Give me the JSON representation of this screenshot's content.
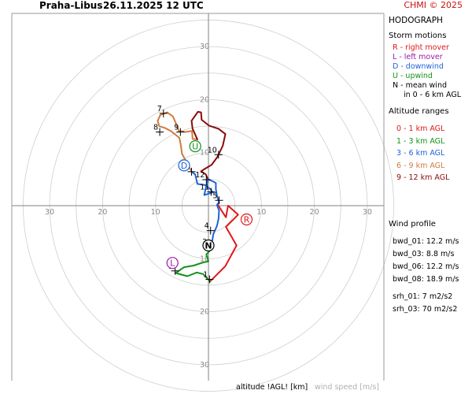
{
  "header": {
    "station": "Praha-Libus",
    "datetime": "26.11.2025 12 UTC",
    "copyright": "CHMI © 2025"
  },
  "legend": {
    "title": "HODOGRAPH",
    "storm_motions_title": "Storm motions",
    "storm_motions": [
      {
        "text": "R - right mover",
        "color": "#e01818"
      },
      {
        "text": "L - left mover",
        "color": "#9a1aa8"
      },
      {
        "text": "D - downwind",
        "color": "#1f63d8"
      },
      {
        "text": "U - upwind",
        "color": "#13911b"
      },
      {
        "text": "N - mean wind",
        "color": "#000000"
      },
      {
        "text": "in 0 - 6 km AGL",
        "color": "#000000"
      }
    ],
    "altitude_title": "Altitude ranges",
    "altitude_ranges": [
      {
        "text": "0 - 1 km AGL",
        "color": "#e01818"
      },
      {
        "text": "1 - 3 km AGL",
        "color": "#13911b"
      },
      {
        "text": "3 - 6 km AGL",
        "color": "#1f63d8"
      },
      {
        "text": "6 - 9 km AGL",
        "color": "#d07b3e"
      },
      {
        "text": "9 - 12 km AGL",
        "color": "#8b0a0a"
      }
    ],
    "wind_profile_title": "Wind profile",
    "wind_profile": [
      "bwd_01: 12.2 m/s",
      "bwd_03: 8.8 m/s",
      "bwd_06: 12.2 m/s",
      "bwd_08: 18.9 m/s",
      "srh_01: 7 m2/s2",
      "srh_03: 70 m2/s2"
    ]
  },
  "footer": {
    "altitude_label": "altitude !AGL! [km]",
    "speed_label": "wind speed [m/s]"
  },
  "chart_data": {
    "type": "line",
    "title": "HODOGRAPH",
    "units": "m/s",
    "axis_range": [
      -36,
      36
    ],
    "rings": [
      5,
      10,
      15,
      20,
      25,
      30,
      35
    ],
    "tick_labels": [
      "10",
      "20",
      "30"
    ],
    "grid": true,
    "series": [
      {
        "name": "0 - 1 km AGL",
        "color": "#e01818",
        "points": [
          [
            0.3,
            -14.3
          ],
          [
            3.2,
            -11.4
          ],
          [
            5.3,
            -7.5
          ],
          [
            3.3,
            -4.0
          ],
          [
            5.6,
            -1.7
          ],
          [
            3.7,
            0.0
          ],
          [
            3.3,
            -2.2
          ],
          [
            1.7,
            0.3
          ],
          [
            2.0,
            0.6
          ]
        ]
      },
      {
        "name": "1 - 3 km AGL",
        "color": "#13911b",
        "points": [
          [
            0.3,
            -14.3
          ],
          [
            -1.0,
            -12.9
          ],
          [
            -2.2,
            -12.6
          ],
          [
            -4.0,
            -13.3
          ],
          [
            -6.2,
            -12.7
          ],
          [
            -4.6,
            -11.6
          ],
          [
            -2.8,
            -11.3
          ],
          [
            -1.0,
            -10.7
          ],
          [
            0.0,
            -10.5
          ],
          [
            -0.4,
            -9.2
          ],
          [
            0.4,
            -8.3
          ],
          [
            0.0,
            -8.0
          ]
        ]
      },
      {
        "name": "3 - 6 km AGL",
        "color": "#1f63d8",
        "points": [
          [
            0.0,
            -8.0
          ],
          [
            0.7,
            -6.8
          ],
          [
            0.9,
            -5.4
          ],
          [
            1.6,
            -3.8
          ],
          [
            1.9,
            -2.5
          ],
          [
            2.0,
            -0.9
          ],
          [
            1.6,
            0.1
          ],
          [
            2.0,
            0.6
          ],
          [
            1.6,
            1.9
          ],
          [
            1.4,
            3.1
          ],
          [
            1.4,
            4.3
          ],
          [
            0.6,
            4.7
          ],
          [
            -0.1,
            5.0
          ],
          [
            -0.6,
            2.9
          ],
          [
            -0.8,
            2.0
          ],
          [
            0.8,
            2.5
          ],
          [
            0.4,
            3.1
          ],
          [
            -0.7,
            3.9
          ],
          [
            -2.1,
            4.1
          ],
          [
            -2.5,
            5.9
          ],
          [
            -3.2,
            6.4
          ]
        ]
      },
      {
        "name": "6 - 9 km AGL",
        "color": "#d07b3e",
        "points": [
          [
            -3.2,
            6.4
          ],
          [
            -4.2,
            8.3
          ],
          [
            -5.0,
            9.8
          ],
          [
            -5.2,
            11.3
          ],
          [
            -5.5,
            12.8
          ],
          [
            -7.0,
            14.0
          ],
          [
            -8.1,
            14.6
          ],
          [
            -9.3,
            15.0
          ],
          [
            -9.6,
            16.0
          ],
          [
            -9.1,
            17.1
          ],
          [
            -7.8,
            17.6
          ],
          [
            -6.7,
            16.8
          ],
          [
            -6.1,
            15.4
          ],
          [
            -5.6,
            14.1
          ],
          [
            -4.3,
            13.9
          ],
          [
            -3.1,
            14.1
          ],
          [
            -3.0,
            12.6
          ],
          [
            -2.1,
            12.5
          ]
        ]
      },
      {
        "name": "9 - 12 km AGL",
        "color": "#8b0a0a",
        "points": [
          [
            -2.1,
            12.5
          ],
          [
            -3.0,
            14.5
          ],
          [
            -3.2,
            16.0
          ],
          [
            -2.0,
            17.7
          ],
          [
            -1.4,
            17.6
          ],
          [
            -1.3,
            16.2
          ],
          [
            0.1,
            15.1
          ],
          [
            1.9,
            14.5
          ],
          [
            3.2,
            13.5
          ],
          [
            2.7,
            11.3
          ],
          [
            1.7,
            9.2
          ],
          [
            0.6,
            7.7
          ],
          [
            -0.6,
            7.0
          ],
          [
            -1.4,
            6.5
          ],
          [
            -0.5,
            5.9
          ],
          [
            -0.2,
            5.2
          ]
        ]
      }
    ],
    "height_labels": [
      {
        "text": "1",
        "x": 0.2,
        "y": -13.9
      },
      {
        "text": "2",
        "x": -6.3,
        "y": -12.3
      },
      {
        "text": "3",
        "x": 0.0,
        "y": -7.7
      },
      {
        "text": "4",
        "x": 0.4,
        "y": -4.7
      },
      {
        "text": "5",
        "x": 2.0,
        "y": 1.0
      },
      {
        "text": "6",
        "x": -3.2,
        "y": 6.4
      },
      {
        "text": "7",
        "x": -8.5,
        "y": 17.4
      },
      {
        "text": "8",
        "x": -9.2,
        "y": 13.9
      },
      {
        "text": "9",
        "x": -5.3,
        "y": 13.9
      },
      {
        "text": "10",
        "x": 1.9,
        "y": 9.6
      },
      {
        "text": "11",
        "x": 0.5,
        "y": 2.6
      },
      {
        "text": "12",
        "x": -0.4,
        "y": 4.9
      }
    ],
    "storm_motions": [
      {
        "label": "R",
        "x": 7.2,
        "y": -2.6,
        "color": "#e01818"
      },
      {
        "label": "L",
        "x": -6.8,
        "y": -10.8,
        "color": "#9a1aa8"
      },
      {
        "label": "D",
        "x": -4.6,
        "y": 7.6,
        "color": "#1f63d8"
      },
      {
        "label": "U",
        "x": -2.5,
        "y": 11.2,
        "color": "#13911b"
      },
      {
        "label": "N",
        "x": 0.0,
        "y": -7.5,
        "color": "#000000"
      }
    ]
  }
}
